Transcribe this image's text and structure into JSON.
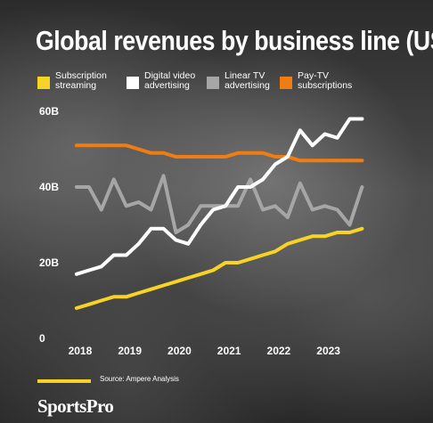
{
  "title": "Global revenues by business line (US$)",
  "source": "Source: Ampere Analysis",
  "brand": "SportsPro",
  "colors": {
    "accent": "#f6d324"
  },
  "chart_data": {
    "type": "line",
    "ylim": [
      0,
      60
    ],
    "xlim": [
      2017.75,
      2023.85
    ],
    "x_ticks": [
      2018,
      2019,
      2020,
      2021,
      2022,
      2023
    ],
    "x_tick_labels": [
      "2018",
      "2019",
      "2020",
      "2021",
      "2022",
      "2023"
    ],
    "y_ticks": [
      0,
      20,
      40,
      60
    ],
    "y_tick_labels": [
      "0",
      "20B",
      "40B",
      "60B"
    ],
    "grid": false,
    "legend_position": "top",
    "x": [
      2018.0,
      2018.25,
      2018.5,
      2018.75,
      2019.0,
      2019.25,
      2019.5,
      2019.75,
      2020.0,
      2020.25,
      2020.5,
      2020.75,
      2021.0,
      2021.25,
      2021.5,
      2021.75,
      2022.0,
      2022.25,
      2022.5,
      2022.75,
      2023.0,
      2023.25,
      2023.5,
      2023.75
    ],
    "series": [
      {
        "name": "Subscription streaming",
        "color": "#f6d324",
        "values": [
          8,
          9,
          10,
          11,
          11,
          12,
          13,
          14,
          15,
          16,
          17,
          18,
          20,
          20,
          21,
          22,
          23,
          25,
          26,
          27,
          27,
          28,
          28,
          29
        ]
      },
      {
        "name": "Digital video advertising",
        "color": "#ffffff",
        "values": [
          17,
          18,
          19,
          22,
          22,
          25,
          29,
          29,
          26,
          25,
          30,
          34,
          35,
          40,
          40,
          42,
          46,
          48,
          55,
          51,
          54,
          53,
          58,
          58
        ]
      },
      {
        "name": "Linear TV advertising",
        "color": "#a6a6a6",
        "values": [
          40,
          40,
          34,
          42,
          35,
          36,
          34,
          43,
          28,
          30,
          35,
          35,
          35,
          35,
          42,
          34,
          35,
          32,
          41,
          34,
          35,
          34,
          30,
          40
        ]
      },
      {
        "name": "Pay-TV subscriptions",
        "color": "#f07d12",
        "values": [
          51,
          51,
          51,
          51,
          51,
          50,
          49,
          49,
          48,
          48,
          48,
          48,
          48,
          49,
          49,
          49,
          48,
          48,
          47,
          47,
          47,
          47,
          47,
          47
        ]
      }
    ]
  }
}
